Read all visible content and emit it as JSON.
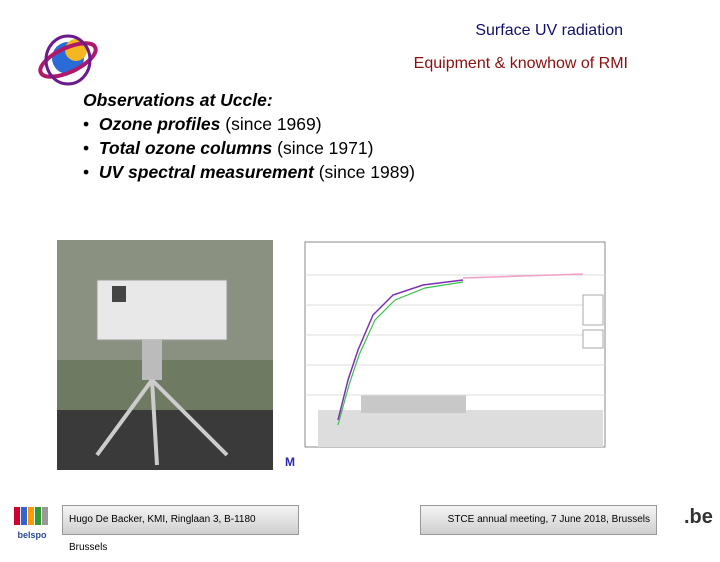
{
  "header": {
    "title": "Surface UV radiation",
    "subtitle": "Equipment & knowhow of RMI"
  },
  "body": {
    "heading": "Observations at Uccle:",
    "bullets": [
      {
        "bold": "Ozone profiles",
        "rest": "(since 1969)"
      },
      {
        "bold": "Total ozone columns",
        "rest": "(since 1971)"
      },
      {
        "bold": "UV spectral measurement",
        "rest": "(since 1989)"
      }
    ]
  },
  "footer": {
    "left": "Hugo De Backer, KMI, Ringlaan 3, B-1180 Brussels",
    "right": "STCE annual meeting, 7 June 2018, Brussels"
  },
  "logos": {
    "belspo": "belspo",
    "be": ".be"
  }
}
